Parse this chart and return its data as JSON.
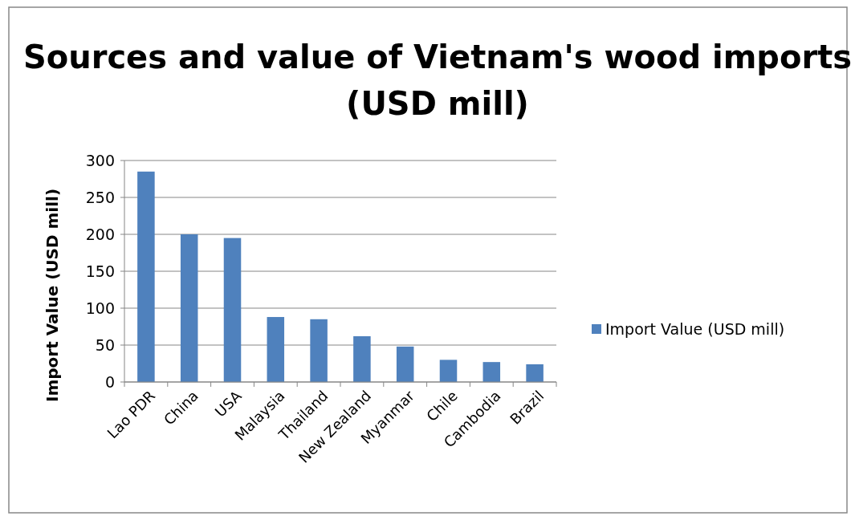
{
  "chart_data": {
    "type": "bar",
    "title": "Sources and value of Vietnam's wood imports (USD mill)",
    "ylabel": "Import Value (USD mill)",
    "categories": [
      "Lao PDR",
      "China",
      "USA",
      "Malaysia",
      "Thailand",
      "New Zealand",
      "Myanmar",
      "Chile",
      "Cambodia",
      "Brazil"
    ],
    "series": [
      {
        "name": "Import Value (USD mill)",
        "color": "#4f81bd",
        "values": [
          285,
          200,
          195,
          88,
          85,
          62,
          48,
          30,
          27,
          24
        ]
      }
    ],
    "ylim": [
      0,
      300
    ],
    "yticks": [
      0,
      50,
      100,
      150,
      200,
      250,
      300
    ],
    "grid": "y",
    "legend": "right"
  }
}
